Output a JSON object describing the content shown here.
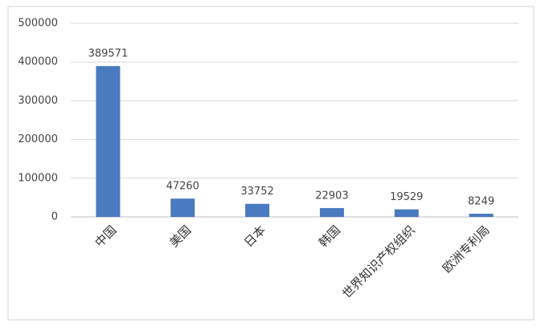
{
  "chart_data": {
    "type": "bar",
    "categories": [
      "中国",
      "美国",
      "日本",
      "韩国",
      "世界知识产权组织",
      "欧洲专利局"
    ],
    "values": [
      389571,
      47260,
      33752,
      22903,
      19529,
      8249
    ],
    "color": "#4a7ac0",
    "ylim": [
      0,
      500000
    ],
    "yticks": [
      0,
      100000,
      200000,
      300000,
      400000,
      500000
    ],
    "grid": true
  }
}
